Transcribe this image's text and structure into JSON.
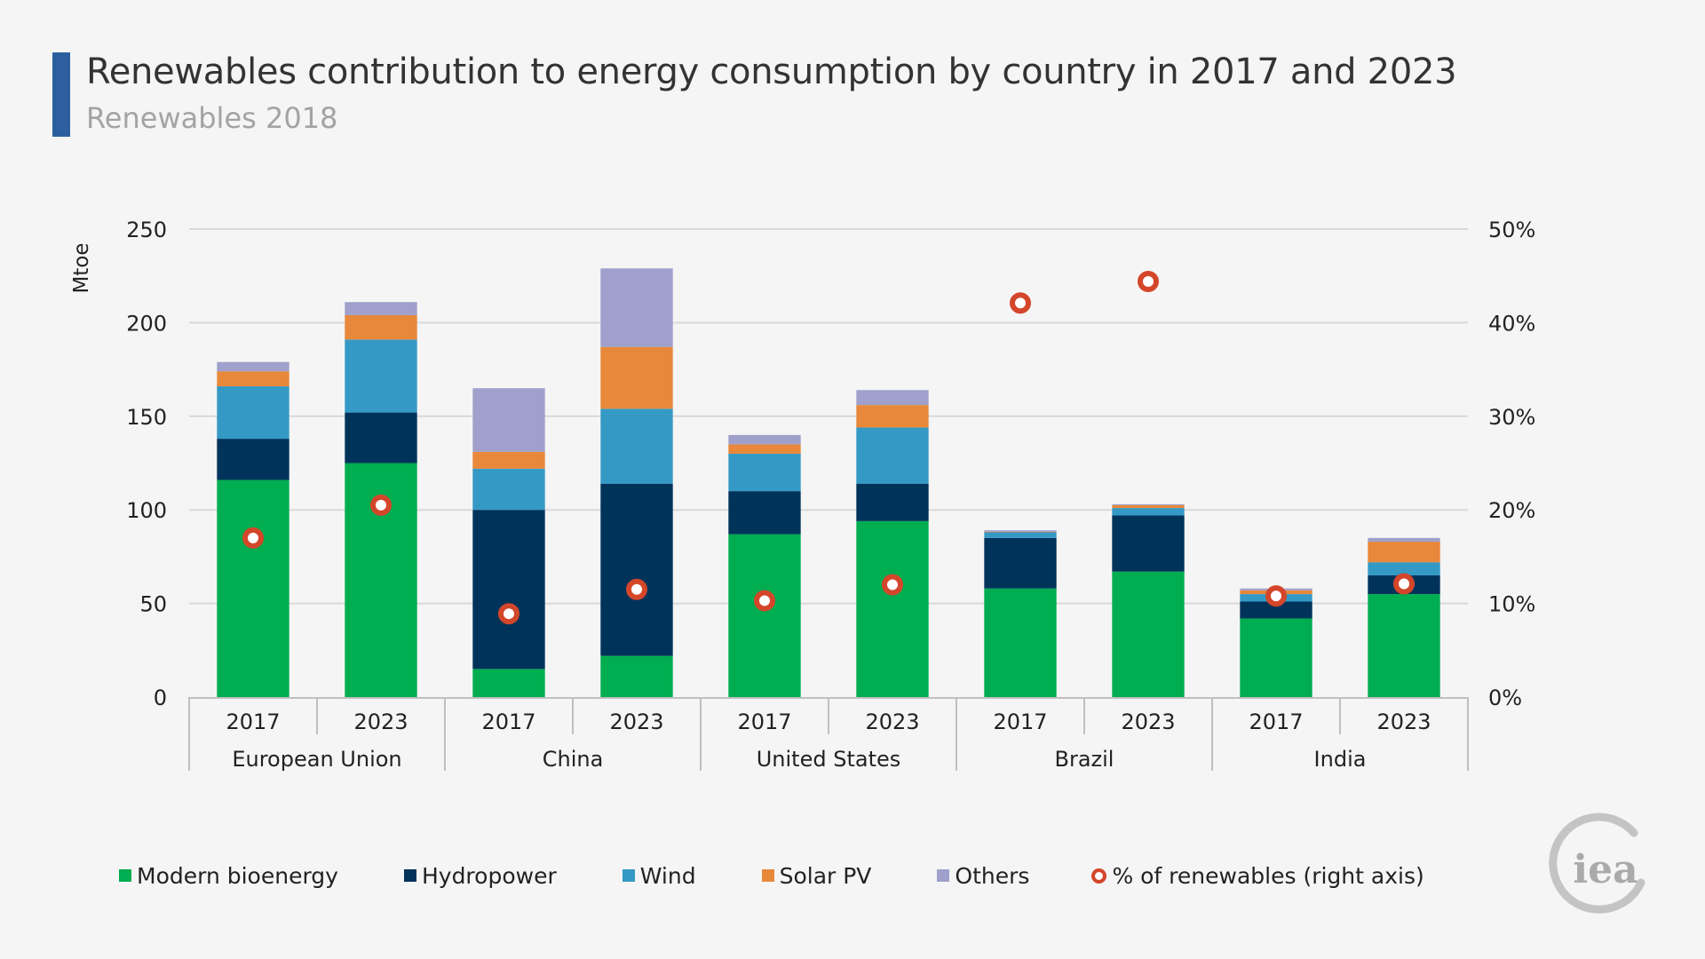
{
  "header": {
    "title": "Renewables contribution to energy consumption by country in 2017 and 2023",
    "subtitle": "Renewables 2018"
  },
  "logo": {
    "text": "iea",
    "icon": "iea-logo-icon"
  },
  "colors": {
    "accent": "#2d5f9e",
    "Modern bioenergy": "#00ad50",
    "Hydropower": "#00335a",
    "Wind": "#3599c5",
    "Solar PV": "#e8883a",
    "Others": "#9fa0cb",
    "percent_marker": "#d4462a",
    "gridline": "#d9d9d9"
  },
  "chart_data": {
    "type": "bar",
    "stacked": true,
    "title": "Renewables contribution to energy consumption by country in 2017 and 2023",
    "subtitle": "Renewables 2018",
    "ylabel": "Mtoe",
    "ylabel_right": "% of renewables",
    "ylim": [
      0,
      250
    ],
    "y_ticks": [
      0,
      50,
      100,
      150,
      200,
      250
    ],
    "ylim_right": [
      0,
      50
    ],
    "y_right_ticks": [
      "0%",
      "10%",
      "20%",
      "30%",
      "40%",
      "50%"
    ],
    "grid": true,
    "legend_position": "bottom",
    "groups": [
      {
        "name": "European Union",
        "categories": [
          "2017",
          "2023"
        ]
      },
      {
        "name": "China",
        "categories": [
          "2017",
          "2023"
        ]
      },
      {
        "name": "United States",
        "categories": [
          "2017",
          "2023"
        ]
      },
      {
        "name": "Brazil",
        "categories": [
          "2017",
          "2023"
        ]
      },
      {
        "name": "India",
        "categories": [
          "2017",
          "2023"
        ]
      }
    ],
    "categories": [
      "European Union 2017",
      "European Union 2023",
      "China 2017",
      "China 2023",
      "United States 2017",
      "United States 2023",
      "Brazil 2017",
      "Brazil 2023",
      "India 2017",
      "India 2023"
    ],
    "series": [
      {
        "name": "Modern bioenergy",
        "values": [
          116,
          125,
          15,
          22,
          87,
          94,
          58,
          67,
          42,
          55
        ]
      },
      {
        "name": "Hydropower",
        "values": [
          22,
          27,
          85,
          92,
          23,
          20,
          27,
          30,
          9,
          10
        ]
      },
      {
        "name": "Wind",
        "values": [
          28,
          39,
          22,
          40,
          20,
          30,
          3,
          4,
          4,
          7
        ]
      },
      {
        "name": "Solar PV",
        "values": [
          8,
          13,
          9,
          33,
          5,
          12,
          0.3,
          1.5,
          2,
          11
        ]
      },
      {
        "name": "Others",
        "values": [
          5,
          7,
          34,
          42,
          5,
          8,
          0.8,
          0.5,
          1,
          2
        ]
      }
    ],
    "line_series": {
      "name": "% of renewables (right axis)",
      "axis": "right",
      "unit": "%",
      "values": [
        17.0,
        20.5,
        8.9,
        11.5,
        10.3,
        12.0,
        42.1,
        44.4,
        10.8,
        12.1
      ]
    }
  }
}
